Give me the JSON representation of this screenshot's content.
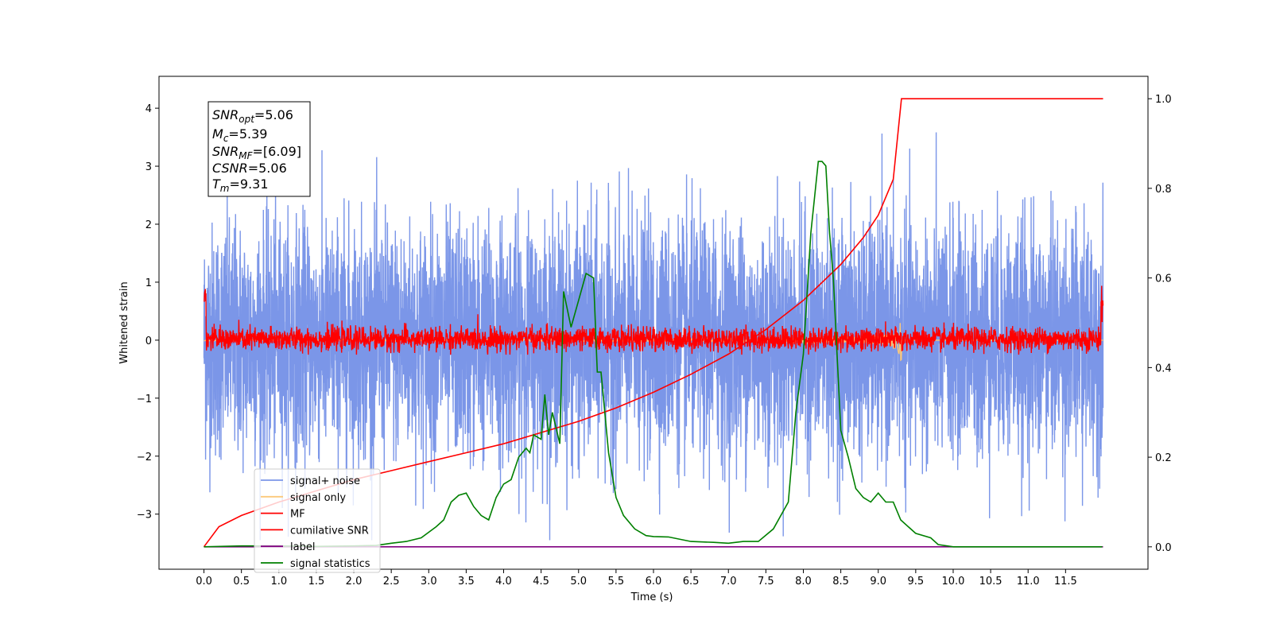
{
  "chart_data": {
    "type": "line",
    "xlabel": "Time (s)",
    "ylabel": "Whitened strain",
    "xlim": [
      -0.6,
      12.6
    ],
    "ylim": [
      -3.95,
      4.55
    ],
    "y2lim": [
      -0.05,
      1.05
    ],
    "x_ticks": [
      "0.0",
      "0.5",
      "1.0",
      "1.5",
      "2.0",
      "2.5",
      "3.0",
      "3.5",
      "4.0",
      "4.5",
      "5.0",
      "5.5",
      "6.0",
      "6.5",
      "7.0",
      "7.5",
      "8.0",
      "8.5",
      "9.0",
      "9.5",
      "10.0",
      "10.5",
      "11.0",
      "11.5"
    ],
    "y_ticks": [
      "4",
      "3",
      "2",
      "1",
      "0",
      "−1",
      "−2",
      "−3"
    ],
    "y2_ticks": [
      "1.0",
      "0.8",
      "0.6",
      "0.4",
      "0.2",
      "0.0"
    ],
    "annotation": {
      "snr_opt": {
        "base": "SNR",
        "sub": "opt",
        "value": "=5.06"
      },
      "mc": {
        "base": "M",
        "sub": "c",
        "value": "=5.39"
      },
      "snr_mf": {
        "base": "SNR",
        "sub": "MF",
        "value": "=[6.09]"
      },
      "csnr": {
        "base": "CSNR",
        "sub": "",
        "value": "=5.06"
      },
      "tm": {
        "base": "T",
        "sub": "m",
        "value": "=9.31"
      }
    },
    "legend_position": "lower-left",
    "series": [
      {
        "name": "signal+ noise",
        "color": "#7b96e8",
        "axis": "left",
        "description_values": {
          "x_range": [
            0,
            12
          ],
          "y_range": [
            -3.45,
            4.2
          ],
          "band_std": 1.0
        }
      },
      {
        "name": "signal only",
        "color": "#fcc97a",
        "axis": "left",
        "peak_x": 9.31,
        "peak_abs": 0.45
      },
      {
        "name": "MF",
        "color": "#ff0000",
        "axis": "left",
        "description_values": {
          "x_range": [
            0,
            12
          ],
          "y_range": [
            -0.25,
            0.95
          ]
        }
      },
      {
        "name": "cumilative SNR",
        "color": "#ff0000",
        "axis": "right",
        "x": [
          0,
          0.2,
          0.5,
          1.0,
          1.5,
          2.0,
          2.5,
          3.0,
          3.5,
          4.0,
          4.5,
          5.0,
          5.5,
          6.0,
          6.5,
          7.0,
          7.5,
          8.0,
          8.5,
          8.8,
          9.0,
          9.2,
          9.31,
          10.0,
          11.0,
          12.0
        ],
        "values": [
          0.0,
          0.045,
          0.07,
          0.1,
          0.125,
          0.15,
          0.17,
          0.19,
          0.21,
          0.23,
          0.255,
          0.28,
          0.31,
          0.345,
          0.385,
          0.43,
          0.485,
          0.55,
          0.63,
          0.69,
          0.74,
          0.82,
          1.0,
          1.0,
          1.0,
          1.0
        ]
      },
      {
        "name": "label",
        "color": "#800080",
        "axis": "right",
        "x": [
          0,
          12
        ],
        "values": [
          0.0,
          0.0
        ]
      },
      {
        "name": "signal statistics",
        "color": "#008000",
        "axis": "right",
        "x": [
          0,
          0.5,
          1.0,
          1.5,
          2.0,
          2.3,
          2.5,
          2.7,
          2.9,
          3.1,
          3.2,
          3.3,
          3.4,
          3.5,
          3.6,
          3.7,
          3.8,
          3.9,
          4.0,
          4.1,
          4.2,
          4.3,
          4.35,
          4.4,
          4.5,
          4.55,
          4.6,
          4.65,
          4.75,
          4.8,
          4.9,
          5.0,
          5.1,
          5.2,
          5.25,
          5.3,
          5.4,
          5.5,
          5.6,
          5.75,
          5.9,
          6.0,
          6.2,
          6.5,
          6.8,
          7.0,
          7.2,
          7.4,
          7.6,
          7.8,
          7.9,
          8.0,
          8.1,
          8.2,
          8.25,
          8.3,
          8.35,
          8.4,
          8.5,
          8.6,
          8.7,
          8.8,
          8.9,
          9.0,
          9.1,
          9.2,
          9.3,
          9.5,
          9.7,
          9.8,
          10.0,
          11.0,
          11.99
        ],
        "values": [
          0.0,
          0.002,
          0.002,
          0.001,
          0.002,
          0.003,
          0.008,
          0.012,
          0.02,
          0.045,
          0.06,
          0.1,
          0.115,
          0.12,
          0.09,
          0.07,
          0.06,
          0.11,
          0.14,
          0.15,
          0.2,
          0.22,
          0.21,
          0.25,
          0.24,
          0.34,
          0.25,
          0.3,
          0.23,
          0.57,
          0.49,
          0.55,
          0.61,
          0.6,
          0.39,
          0.39,
          0.21,
          0.11,
          0.07,
          0.04,
          0.025,
          0.023,
          0.022,
          0.012,
          0.01,
          0.008,
          0.012,
          0.012,
          0.04,
          0.1,
          0.3,
          0.43,
          0.7,
          0.86,
          0.86,
          0.85,
          0.7,
          0.6,
          0.26,
          0.2,
          0.13,
          0.11,
          0.1,
          0.12,
          0.1,
          0.1,
          0.06,
          0.03,
          0.02,
          0.005,
          0.0,
          0.0,
          0.0
        ]
      }
    ]
  }
}
